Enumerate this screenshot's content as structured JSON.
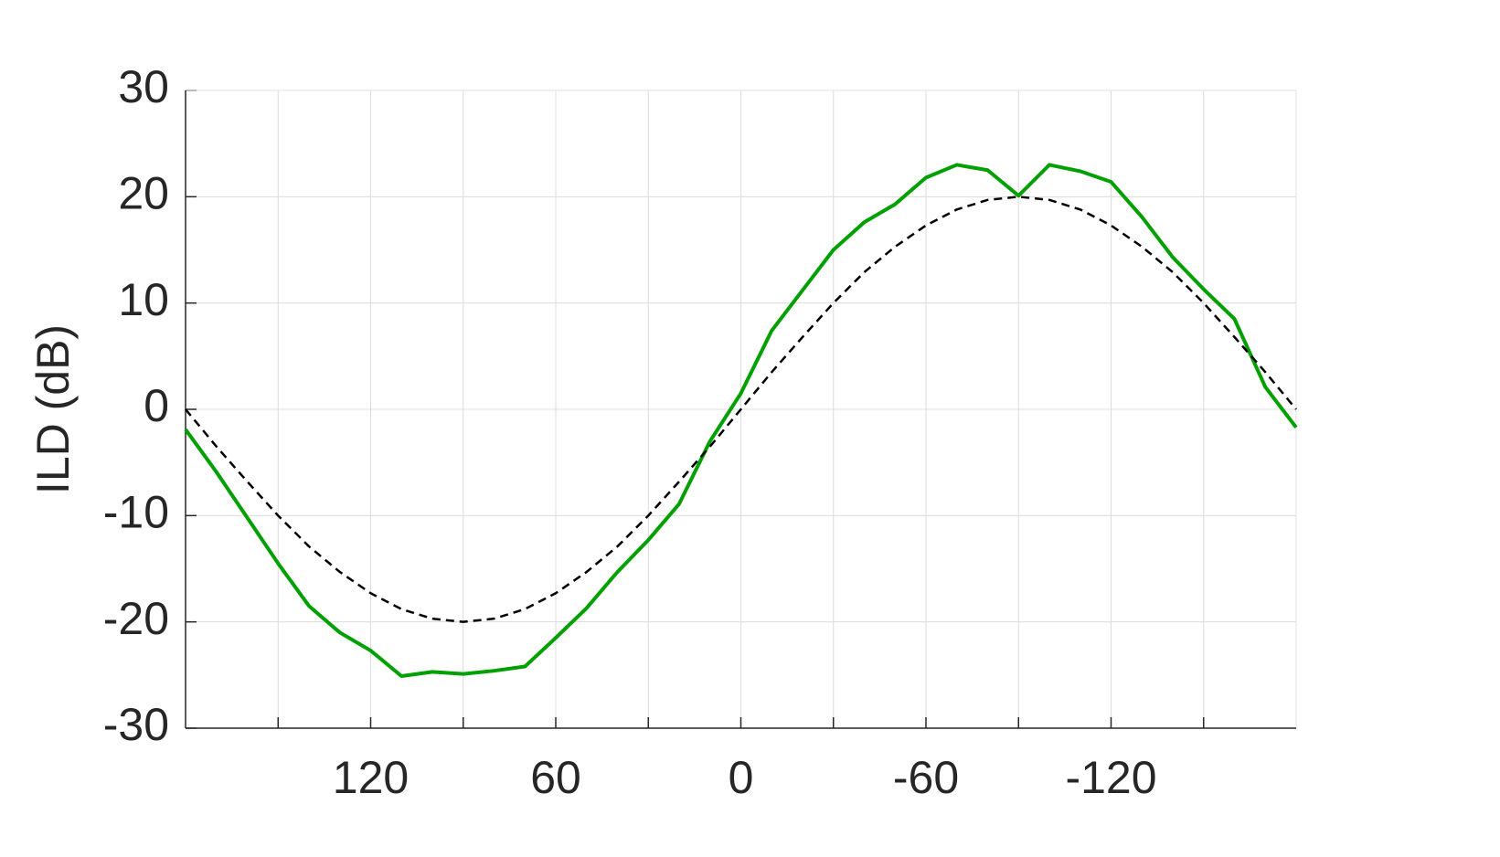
{
  "chart_data": {
    "type": "line",
    "ylabel": "ILD (dB)",
    "x": [
      180,
      170,
      160,
      150,
      140,
      130,
      120,
      110,
      100,
      90,
      80,
      70,
      60,
      50,
      40,
      30,
      20,
      10,
      0,
      -10,
      -20,
      -30,
      -40,
      -50,
      -60,
      -70,
      -80,
      -90,
      -100,
      -110,
      -120,
      -130,
      -140,
      -150,
      -160,
      -170,
      -180
    ],
    "series": [
      {
        "color": "#00a000",
        "style": "solid",
        "values": [
          -1.9,
          -5.9,
          -10.2,
          -14.5,
          -18.5,
          -21,
          -22.7,
          -25.1,
          -24.7,
          -24.9,
          -24.6,
          -24.2,
          -21.5,
          -18.7,
          -15.3,
          -12.3,
          -8.9,
          -3.0,
          1.5,
          7.4,
          11.2,
          15.0,
          17.6,
          19.3,
          21.8,
          23.0,
          22.5,
          20.1,
          23.0,
          22.4,
          21.4,
          18.1,
          14.3,
          11.3,
          8.5,
          2.1,
          -1.7
        ]
      },
      {
        "color": "#000000",
        "style": "dashed",
        "values": [
          0,
          -3.5,
          -6.8,
          -10,
          -12.9,
          -15.3,
          -17.3,
          -18.8,
          -19.7,
          -20,
          -19.7,
          -18.8,
          -17.3,
          -15.3,
          -12.9,
          -10,
          -6.8,
          -3.5,
          0,
          3.5,
          6.8,
          10,
          12.9,
          15.3,
          17.3,
          18.8,
          19.7,
          20,
          19.7,
          18.8,
          17.3,
          15.3,
          12.9,
          10,
          6.8,
          3.5,
          0
        ]
      }
    ],
    "xlim": [
      180,
      -180
    ],
    "xticks": [
      {
        "value": 150,
        "label": null
      },
      120,
      {
        "value": 90,
        "label": null
      },
      60,
      {
        "value": 30,
        "label": null
      },
      0,
      {
        "value": -30,
        "label": null
      },
      -60,
      {
        "value": -90,
        "label": null
      },
      -120,
      {
        "value": -150,
        "label": null
      }
    ],
    "ylim": [
      -30,
      30
    ],
    "yticks": [
      -30,
      -20,
      -10,
      0,
      10,
      20,
      30
    ],
    "grid": true
  }
}
